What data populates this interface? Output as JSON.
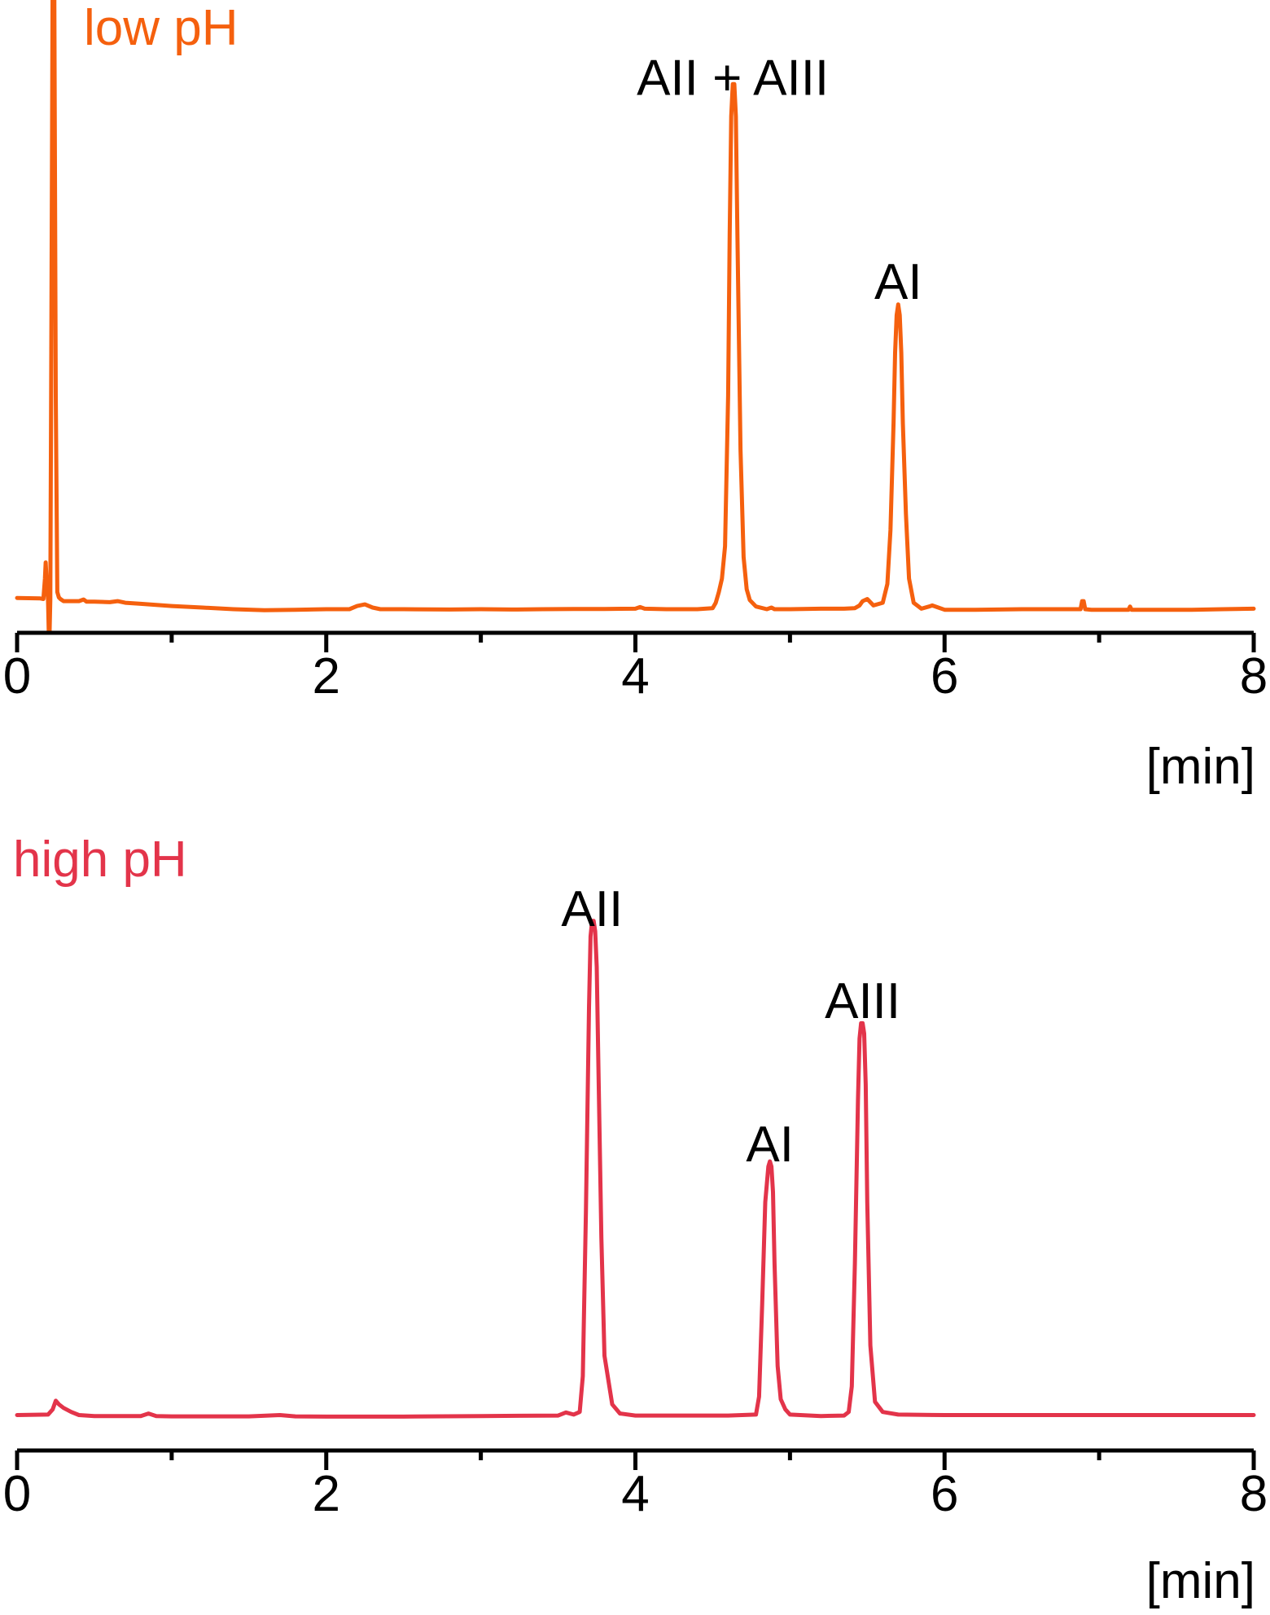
{
  "colors": {
    "low_ph": "#f5600e",
    "high_ph": "#e3344a",
    "axis": "#000000"
  },
  "chart_data": [
    {
      "type": "line",
      "title": "low pH",
      "xlabel": "[min]",
      "ylabel": "",
      "xlim": [
        0,
        8
      ],
      "ylim": [
        0,
        100
      ],
      "grid": false,
      "x_ticks": [
        "0",
        "2",
        "4",
        "6",
        "8"
      ],
      "x_minor_ticks": [
        1,
        3,
        5,
        7
      ],
      "annotations": [
        {
          "text": "AII + AIII",
          "x": 4.63,
          "y": 96
        },
        {
          "text": "AI",
          "x": 5.7,
          "y": 58
        }
      ],
      "series": [
        {
          "color": "#f5600e",
          "x": [
            0,
            0.15,
            0.17,
            0.18,
            0.185,
            0.19,
            0.2,
            0.205,
            0.21,
            0.215,
            0.22,
            0.23,
            0.24,
            0.25,
            0.26,
            0.27,
            0.28,
            0.3,
            0.4,
            0.43,
            0.45,
            0.5,
            0.6,
            0.65,
            0.7,
            0.8,
            1.0,
            1.2,
            1.4,
            1.6,
            1.8,
            2.0,
            2.15,
            2.2,
            2.25,
            2.3,
            2.35,
            2.5,
            2.8,
            3.0,
            3.2,
            3.4,
            3.6,
            3.8,
            4.0,
            4.03,
            4.06,
            4.2,
            4.4,
            4.5,
            4.52,
            4.54,
            4.56,
            4.58,
            4.6,
            4.61,
            4.62,
            4.63,
            4.64,
            4.65,
            4.66,
            4.68,
            4.7,
            4.72,
            4.74,
            4.78,
            4.85,
            4.88,
            4.9,
            4.93,
            5.0,
            5.2,
            5.35,
            5.42,
            5.45,
            5.47,
            5.5,
            5.54,
            5.6,
            5.63,
            5.65,
            5.67,
            5.68,
            5.69,
            5.7,
            5.71,
            5.72,
            5.73,
            5.75,
            5.77,
            5.8,
            5.85,
            5.9,
            5.92,
            5.95,
            6.0,
            6.2,
            6.5,
            6.8,
            6.88,
            6.89,
            6.9,
            6.91,
            6.95,
            7.0,
            7.19,
            7.2,
            7.21,
            7.3,
            7.6,
            7.8,
            8.0
          ],
          "y": [
            2.4,
            2.3,
            2.2,
            6.0,
            9.0,
            6.0,
            2.0,
            -4.0,
            -4.0,
            2.0,
            40.0,
            120.0,
            120.0,
            40.0,
            3.5,
            2.5,
            2.2,
            1.8,
            1.8,
            2.1,
            1.7,
            1.7,
            1.6,
            1.8,
            1.5,
            1.3,
            0.9,
            0.6,
            0.3,
            0.1,
            0.2,
            0.3,
            0.3,
            0.9,
            1.2,
            0.6,
            0.3,
            0.3,
            0.25,
            0.3,
            0.25,
            0.3,
            0.35,
            0.35,
            0.4,
            0.7,
            0.4,
            0.3,
            0.3,
            0.5,
            1.5,
            3.5,
            6.0,
            12.0,
            40.0,
            70.0,
            92.0,
            98.0,
            98.0,
            92.0,
            70.0,
            30.0,
            10.0,
            4.0,
            2.0,
            0.8,
            0.3,
            0.6,
            0.3,
            0.3,
            0.3,
            0.4,
            0.4,
            0.5,
            1.0,
            1.8,
            2.2,
            1.0,
            1.5,
            5.0,
            15.0,
            35.0,
            48.0,
            55.0,
            57.0,
            55.0,
            48.0,
            35.0,
            18.0,
            6.0,
            1.5,
            0.4,
            0.8,
            1.0,
            0.7,
            0.2,
            0.2,
            0.3,
            0.3,
            0.3,
            1.8,
            1.8,
            0.3,
            0.2,
            0.2,
            0.2,
            0.8,
            0.2,
            0.2,
            0.2,
            0.3,
            0.4
          ]
        }
      ]
    },
    {
      "type": "line",
      "title": "high pH",
      "xlabel": "[min]",
      "ylabel": "",
      "xlim": [
        0,
        8
      ],
      "ylim": [
        0,
        100
      ],
      "grid": false,
      "x_ticks": [
        "0",
        "2",
        "4",
        "6",
        "8"
      ],
      "x_minor_ticks": [
        1,
        3,
        5,
        7
      ],
      "annotations": [
        {
          "text": "AII",
          "x": 3.72,
          "y": 96
        },
        {
          "text": "AI",
          "x": 4.87,
          "y": 50
        },
        {
          "text": "AIII",
          "x": 5.47,
          "y": 78
        }
      ],
      "series": [
        {
          "color": "#e3344a",
          "x": [
            0,
            0.2,
            0.23,
            0.25,
            0.27,
            0.3,
            0.35,
            0.4,
            0.5,
            0.8,
            0.85,
            0.9,
            1.0,
            1.5,
            1.7,
            1.8,
            2.0,
            2.5,
            3.0,
            3.5,
            3.55,
            3.6,
            3.64,
            3.66,
            3.68,
            3.7,
            3.71,
            3.72,
            3.73,
            3.74,
            3.75,
            3.76,
            3.78,
            3.8,
            3.85,
            3.9,
            4.0,
            4.2,
            4.4,
            4.6,
            4.78,
            4.8,
            4.82,
            4.84,
            4.86,
            4.87,
            4.88,
            4.89,
            4.9,
            4.92,
            4.94,
            4.97,
            5.0,
            5.2,
            5.35,
            5.38,
            5.4,
            5.42,
            5.44,
            5.45,
            5.46,
            5.47,
            5.48,
            5.49,
            5.5,
            5.52,
            5.55,
            5.6,
            5.7,
            6.0,
            6.5,
            7.0,
            7.5,
            8.0
          ],
          "y": [
            0.4,
            0.5,
            1.5,
            3.2,
            2.5,
            1.8,
            1.0,
            0.4,
            0.2,
            0.2,
            0.7,
            0.2,
            0.15,
            0.15,
            0.4,
            0.15,
            0.1,
            0.1,
            0.2,
            0.3,
            0.9,
            0.5,
            1.0,
            8.0,
            40.0,
            80.0,
            94.0,
            97.0,
            97.0,
            95.0,
            88.0,
            70.0,
            35.0,
            12.0,
            2.5,
            0.7,
            0.3,
            0.3,
            0.3,
            0.3,
            0.5,
            4.0,
            22.0,
            42.0,
            49.0,
            50.0,
            49.0,
            44.0,
            30.0,
            10.0,
            3.5,
            1.5,
            0.5,
            0.2,
            0.3,
            1.0,
            6.0,
            30.0,
            62.0,
            74.0,
            77.0,
            77.0,
            75.0,
            65.0,
            42.0,
            14.0,
            3.0,
            1.0,
            0.5,
            0.4,
            0.4,
            0.4,
            0.4,
            0.4
          ]
        }
      ]
    }
  ]
}
